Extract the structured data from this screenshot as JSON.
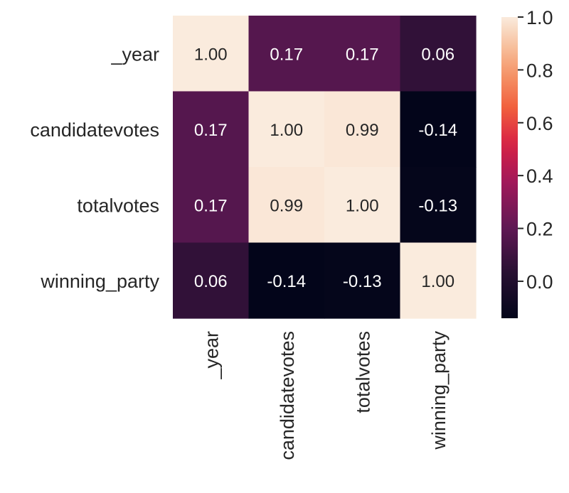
{
  "chart_data": {
    "type": "heatmap",
    "title": "",
    "xlabel": "",
    "ylabel": "",
    "row_labels": [
      "_year",
      "candidatevotes",
      "totalvotes",
      "winning_party"
    ],
    "col_labels": [
      "_year",
      "candidatevotes",
      "totalvotes",
      "winning_party"
    ],
    "values": [
      [
        1.0,
        0.17,
        0.17,
        0.06
      ],
      [
        0.17,
        1.0,
        0.99,
        -0.14
      ],
      [
        0.17,
        0.99,
        1.0,
        -0.13
      ],
      [
        0.06,
        -0.14,
        -0.13,
        1.0
      ]
    ],
    "annotations": [
      [
        "1.00",
        "0.17",
        "0.17",
        "0.06"
      ],
      [
        "0.17",
        "1.00",
        "0.99",
        "-0.14"
      ],
      [
        "0.17",
        "0.99",
        "1.00",
        "-0.13"
      ],
      [
        "0.06",
        "-0.14",
        "-0.13",
        "1.00"
      ]
    ],
    "colormap": "rocket",
    "color_range": [
      -0.14,
      1.0
    ],
    "colorbar": {
      "ticks": [
        0.0,
        0.2,
        0.4,
        0.6,
        0.8,
        1.0
      ],
      "tick_labels": [
        "0.0",
        "0.2",
        "0.4",
        "0.6",
        "0.8",
        "1.0"
      ],
      "position": "right"
    },
    "grid": false
  }
}
